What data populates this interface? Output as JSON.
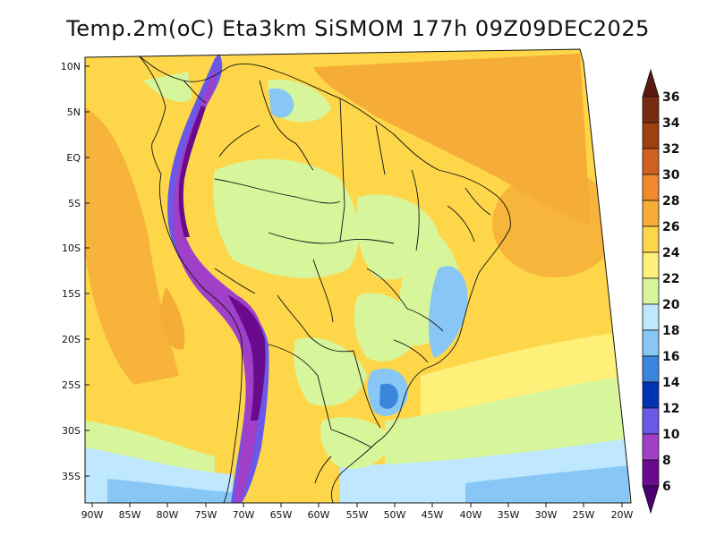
{
  "title": "Temp.2m(oC) Eta3km SiSMOM 177h 09Z09DEC2025",
  "lat_labels": [
    "10N",
    "5N",
    "EQ",
    "5S",
    "10S",
    "15S",
    "20S",
    "25S",
    "30S",
    "35S"
  ],
  "lon_labels": [
    "90W",
    "85W",
    "80W",
    "75W",
    "70W",
    "65W",
    "60W",
    "55W",
    "50W",
    "45W",
    "40W",
    "35W",
    "30W",
    "25W",
    "20W"
  ],
  "colorbar": {
    "labels": [
      "36",
      "34",
      "32",
      "30",
      "28",
      "26",
      "24",
      "22",
      "20",
      "18",
      "16",
      "14",
      "12",
      "10",
      "8",
      "6"
    ],
    "colors": [
      "#5a1a0e",
      "#7a2a10",
      "#a0400e",
      "#d0601e",
      "#f28a2c",
      "#f6ad37",
      "#fdd64a",
      "#fff07a",
      "#d7f59a",
      "#bfe8ff",
      "#88c7f5",
      "#3a86dc",
      "#0033b4",
      "#6a58e8",
      "#a040c8",
      "#6a0a8c",
      "#4b0070"
    ]
  }
}
